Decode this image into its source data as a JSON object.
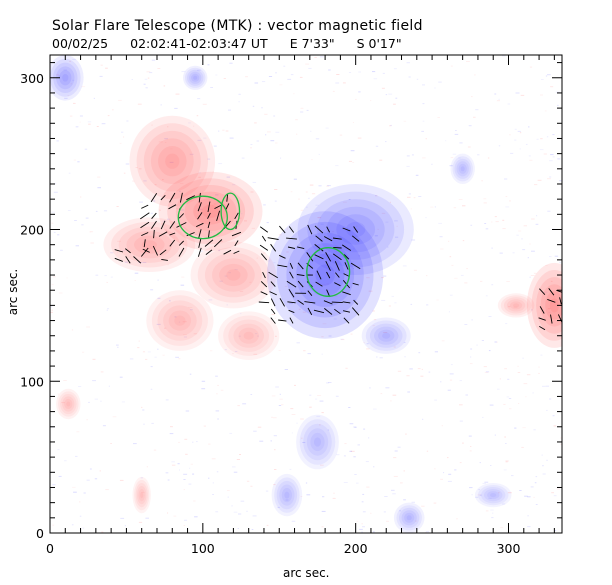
{
  "header": {
    "title": "Solar Flare Telescope (MTK) : vector magnetic field",
    "date": "00/02/25",
    "time_range": "02:02:41-02:03:47 UT",
    "lon": "E 7'33\"",
    "lat": "S 0'17\""
  },
  "chart_data": {
    "type": "heatmap",
    "title": "Solar Flare Telescope (MTK) : vector magnetic field",
    "xlabel": "arc sec.",
    "ylabel": "arc sec.",
    "xlim": [
      0,
      335
    ],
    "ylim": [
      0,
      315
    ],
    "x_ticks": [
      0,
      100,
      200,
      300
    ],
    "y_ticks": [
      0,
      100,
      200,
      300
    ],
    "colors": {
      "positive": "#ff5a5a",
      "negative": "#3a3aff",
      "contour": "#22bb44",
      "vectors": "#000000"
    },
    "regions": [
      {
        "polarity": "positive",
        "x": 105,
        "y": 212,
        "rx": 34,
        "ry": 26,
        "strength": 0.95
      },
      {
        "polarity": "positive",
        "x": 80,
        "y": 245,
        "rx": 28,
        "ry": 30,
        "strength": 0.75
      },
      {
        "polarity": "positive",
        "x": 65,
        "y": 190,
        "rx": 30,
        "ry": 18,
        "strength": 0.6
      },
      {
        "polarity": "positive",
        "x": 120,
        "y": 170,
        "rx": 28,
        "ry": 22,
        "strength": 0.55
      },
      {
        "polarity": "positive",
        "x": 85,
        "y": 140,
        "rx": 22,
        "ry": 20,
        "strength": 0.5
      },
      {
        "polarity": "positive",
        "x": 130,
        "y": 130,
        "rx": 20,
        "ry": 16,
        "strength": 0.45
      },
      {
        "polarity": "positive",
        "x": 330,
        "y": 150,
        "rx": 18,
        "ry": 28,
        "strength": 0.9
      },
      {
        "polarity": "positive",
        "x": 305,
        "y": 150,
        "rx": 12,
        "ry": 8,
        "strength": 0.5
      },
      {
        "polarity": "positive",
        "x": 12,
        "y": 85,
        "rx": 8,
        "ry": 10,
        "strength": 0.45
      },
      {
        "polarity": "positive",
        "x": 60,
        "y": 25,
        "rx": 6,
        "ry": 12,
        "strength": 0.4
      },
      {
        "polarity": "negative",
        "x": 180,
        "y": 170,
        "rx": 38,
        "ry": 42,
        "strength": 1.0
      },
      {
        "polarity": "negative",
        "x": 200,
        "y": 200,
        "rx": 38,
        "ry": 30,
        "strength": 0.65
      },
      {
        "polarity": "negative",
        "x": 220,
        "y": 130,
        "rx": 16,
        "ry": 12,
        "strength": 0.45
      },
      {
        "polarity": "negative",
        "x": 10,
        "y": 300,
        "rx": 12,
        "ry": 15,
        "strength": 0.55
      },
      {
        "polarity": "negative",
        "x": 95,
        "y": 300,
        "rx": 8,
        "ry": 8,
        "strength": 0.45
      },
      {
        "polarity": "negative",
        "x": 175,
        "y": 60,
        "rx": 14,
        "ry": 18,
        "strength": 0.35
      },
      {
        "polarity": "negative",
        "x": 155,
        "y": 25,
        "rx": 10,
        "ry": 14,
        "strength": 0.35
      },
      {
        "polarity": "negative",
        "x": 235,
        "y": 10,
        "rx": 10,
        "ry": 10,
        "strength": 0.4
      },
      {
        "polarity": "negative",
        "x": 270,
        "y": 240,
        "rx": 8,
        "ry": 10,
        "strength": 0.35
      },
      {
        "polarity": "negative",
        "x": 290,
        "y": 25,
        "rx": 12,
        "ry": 8,
        "strength": 0.3
      }
    ]
  }
}
